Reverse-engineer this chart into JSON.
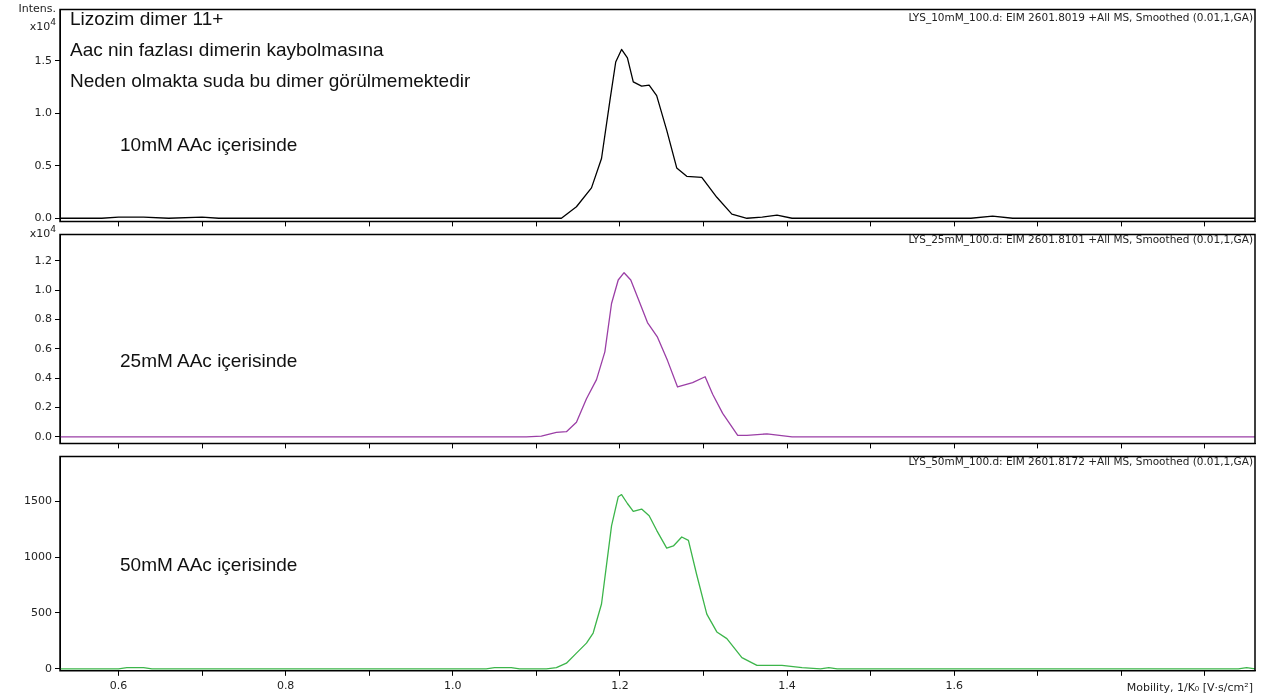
{
  "chart_data": [
    {
      "type": "line",
      "subtitle": "LYS_10mM_100.d: EIM 2601.8019 +All MS, Smoothed (0.01,1,GA)",
      "ylabel": "Intens.\nx10$^{4}$",
      "annotations": [
        "Lizozim dimer 11+",
        "Aac nin fazlası dimerin kaybolmasına",
        "Neden olmakta suda bu dimer görülmemektedir",
        "10mM AAc içerisinde"
      ],
      "marker": "none",
      "tick_labels": "y",
      "xlim": [
        0.53,
        1.96
      ],
      "xticks": [
        {
          "value": 0.6,
          "label": null
        },
        {
          "value": 0.7,
          "label": null
        },
        {
          "value": 0.8,
          "label": null
        },
        {
          "value": 0.9,
          "label": null
        },
        {
          "value": 1.0,
          "label": null
        },
        {
          "value": 1.1,
          "label": null
        },
        {
          "value": 1.2,
          "label": null
        },
        {
          "value": 1.3,
          "label": null
        },
        {
          "value": 1.4,
          "label": null
        },
        {
          "value": 1.5,
          "label": null
        },
        {
          "value": 1.6,
          "label": null
        },
        {
          "value": 1.7,
          "label": null
        },
        {
          "value": 1.8,
          "label": null
        },
        {
          "value": 1.9,
          "label": null
        }
      ],
      "ylim": [
        -0.03,
        1.99
      ],
      "yticks": [
        {
          "value": 0,
          "label": "0.0"
        },
        {
          "value": 0.5,
          "label": "0.5"
        },
        {
          "value": 1,
          "label": "1.0"
        },
        {
          "value": 1.5,
          "label": "1.5"
        }
      ],
      "series": [
        {
          "color": "#000000",
          "x": [
            0.53,
            0.58,
            0.6,
            0.63,
            0.66,
            0.7,
            0.72,
            1.13,
            1.148,
            1.166,
            1.178,
            1.188,
            1.195,
            1.202,
            1.209,
            1.216,
            1.226,
            1.235,
            1.244,
            1.256,
            1.268,
            1.28,
            1.298,
            1.316,
            1.334,
            1.352,
            1.37,
            1.388,
            1.406,
            1.62,
            1.646,
            1.67,
            1.96
          ],
          "values": [
            0,
            0,
            0.01,
            0.01,
            0,
            0.01,
            0,
            0,
            0.11,
            0.29,
            0.57,
            1.12,
            1.49,
            1.61,
            1.53,
            1.3,
            1.26,
            1.27,
            1.17,
            0.84,
            0.48,
            0.4,
            0.39,
            0.2,
            0.04,
            0,
            0.01,
            0.03,
            0,
            0,
            0.02,
            0,
            0
          ]
        }
      ]
    },
    {
      "type": "line",
      "subtitle": "LYS_25mM_100.d: EIM 2601.8101 +All MS, Smoothed (0.01,1,GA)",
      "ylabel": "x10$^{4}$",
      "annotations": [
        "25mM AAc içerisinde"
      ],
      "marker": "none",
      "tick_labels": "y",
      "xlim": [
        0.53,
        1.96
      ],
      "xticks": [
        {
          "value": 0.6,
          "label": null
        },
        {
          "value": 0.7,
          "label": null
        },
        {
          "value": 0.8,
          "label": null
        },
        {
          "value": 0.9,
          "label": null
        },
        {
          "value": 1.0,
          "label": null
        },
        {
          "value": 1.1,
          "label": null
        },
        {
          "value": 1.2,
          "label": null
        },
        {
          "value": 1.3,
          "label": null
        },
        {
          "value": 1.4,
          "label": null
        },
        {
          "value": 1.5,
          "label": null
        },
        {
          "value": 1.6,
          "label": null
        },
        {
          "value": 1.7,
          "label": null
        },
        {
          "value": 1.8,
          "label": null
        },
        {
          "value": 1.9,
          "label": null
        }
      ],
      "ylim": [
        -0.045,
        1.38
      ],
      "yticks": [
        {
          "value": 0,
          "label": "0.0"
        },
        {
          "value": 0.2,
          "label": "0.2"
        },
        {
          "value": 0.4,
          "label": "0.4"
        },
        {
          "value": 0.6,
          "label": "0.6"
        },
        {
          "value": 0.8,
          "label": "0.8"
        },
        {
          "value": 1,
          "label": "1.0"
        },
        {
          "value": 1.2,
          "label": "1.2"
        }
      ],
      "series": [
        {
          "color": "#9b3fa6",
          "x": [
            0.53,
            1.088,
            1.106,
            1.124,
            1.136,
            1.148,
            1.16,
            1.172,
            1.182,
            1.19,
            1.198,
            1.205,
            1.213,
            1.222,
            1.233,
            1.245,
            1.257,
            1.269,
            1.287,
            1.302,
            1.311,
            1.323,
            1.341,
            1.352,
            1.376,
            1.406,
            1.96
          ],
          "values": [
            0,
            0,
            0.005,
            0.03,
            0.035,
            0.1,
            0.26,
            0.39,
            0.58,
            0.91,
            1.07,
            1.12,
            1.07,
            0.94,
            0.78,
            0.68,
            0.52,
            0.34,
            0.37,
            0.41,
            0.29,
            0.16,
            0.01,
            0.01,
            0.02,
            0,
            0
          ]
        }
      ]
    },
    {
      "type": "line",
      "subtitle": "LYS_50mM_100.d: EIM 2601.8172 +All MS, Smoothed (0.01,1,GA)",
      "xlabel": "Mobility, 1/K₀ [V·s/cm²]",
      "annotations": [
        "50mM AAc içerisinde"
      ],
      "marker": "none",
      "xlim": [
        0.53,
        1.96
      ],
      "xticks": [
        {
          "value": 0.6,
          "label": "0.6"
        },
        {
          "value": 0.7,
          "label": null
        },
        {
          "value": 0.8,
          "label": "0.8"
        },
        {
          "value": 0.9,
          "label": null
        },
        {
          "value": 1.0,
          "label": "1.0"
        },
        {
          "value": 1.1,
          "label": null
        },
        {
          "value": 1.2,
          "label": "1.2"
        },
        {
          "value": 1.3,
          "label": null
        },
        {
          "value": 1.4,
          "label": "1.4"
        },
        {
          "value": 1.5,
          "label": null
        },
        {
          "value": 1.6,
          "label": "1.6"
        },
        {
          "value": 1.7,
          "label": null
        },
        {
          "value": 1.8,
          "label": null
        },
        {
          "value": 1.9,
          "label": null
        }
      ],
      "ylim": [
        -18,
        1900
      ],
      "yticks": [
        0,
        500,
        1000,
        1500
      ],
      "series": [
        {
          "color": "#3cb54a",
          "x": [
            0.53,
            0.6,
            0.61,
            0.63,
            0.64,
            1.04,
            1.05,
            1.07,
            1.08,
            1.112,
            1.124,
            1.136,
            1.148,
            1.16,
            1.168,
            1.178,
            1.184,
            1.19,
            1.198,
            1.202,
            1.209,
            1.216,
            1.226,
            1.235,
            1.244,
            1.256,
            1.264,
            1.274,
            1.282,
            1.292,
            1.304,
            1.316,
            1.328,
            1.346,
            1.364,
            1.38,
            1.394,
            1.418,
            1.44,
            1.45,
            1.46,
            1.94,
            1.95,
            1.96
          ],
          "values": [
            0,
            0,
            10,
            10,
            0,
            0,
            10,
            10,
            0,
            0,
            10,
            50,
            140,
            230,
            320,
            580,
            930,
            1280,
            1540,
            1560,
            1480,
            1410,
            1430,
            1370,
            1240,
            1080,
            1100,
            1180,
            1150,
            840,
            490,
            330,
            270,
            100,
            30,
            30,
            30,
            10,
            0,
            10,
            0,
            0,
            10,
            0
          ]
        }
      ]
    }
  ]
}
